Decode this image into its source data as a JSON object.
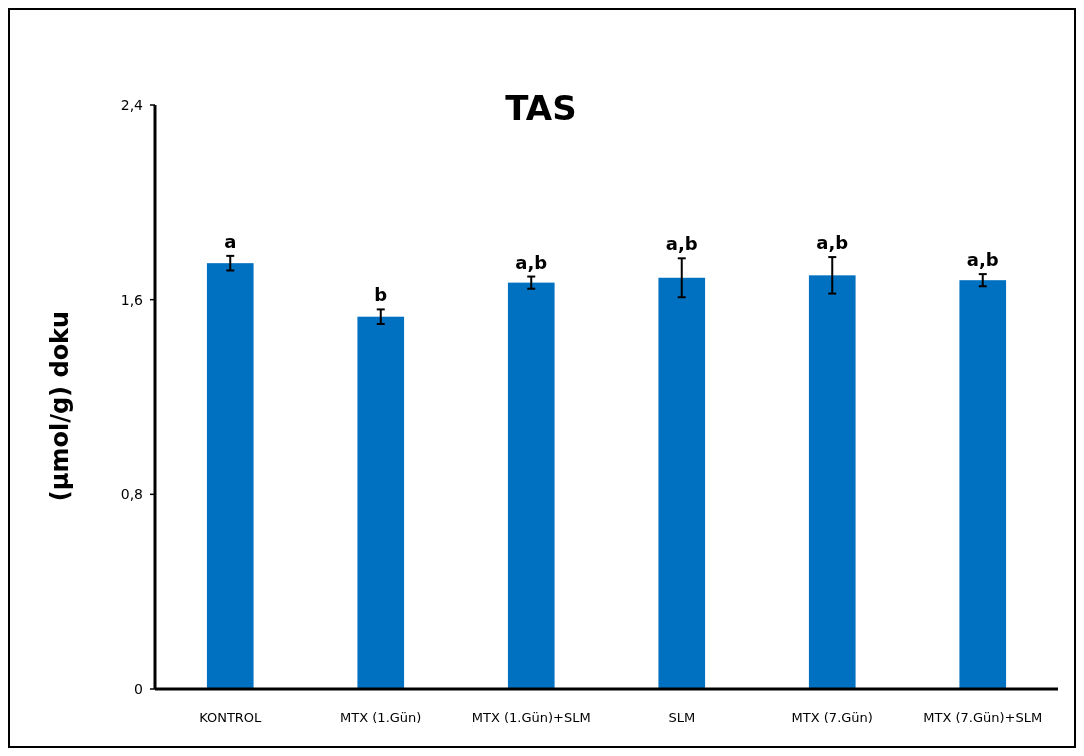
{
  "chart_data": {
    "type": "bar",
    "title": "TAS",
    "ylabel": "(µmol/g) doku",
    "categories": [
      "KONTROL",
      "MTX (1.Gün)",
      "MTX (1.Gün)+SLM",
      "SLM",
      "MTX (7.Gün)",
      "MTX (7.Gün)+SLM"
    ],
    "values": [
      1.75,
      1.53,
      1.67,
      1.69,
      1.7,
      1.68
    ],
    "errors": [
      0.03,
      0.03,
      0.025,
      0.08,
      0.075,
      0.025
    ],
    "color": "#0070c0",
    "ylim": [
      0,
      2.4
    ],
    "yticks": [
      0,
      {
        "value": 0.8,
        "label": "0,8"
      },
      {
        "value": 1.6,
        "label": "1,6"
      },
      {
        "value": 2.4,
        "label": "2,4"
      }
    ],
    "annotations": [
      {
        "text": "a",
        "x": "KONTROL",
        "y": 1.78
      },
      {
        "text": "b",
        "x": "MTX (1.Gün)",
        "y": 1.56
      },
      {
        "text": "a,b",
        "x": "MTX (1.Gün)+SLM",
        "y": 1.695
      },
      {
        "text": "a,b",
        "x": "SLM",
        "y": 1.77
      },
      {
        "text": "a,b",
        "x": "MTX (7.Gün)",
        "y": 1.775
      },
      {
        "text": "a,b",
        "x": "MTX (7.Gün)+SLM",
        "y": 1.705
      }
    ],
    "grid": false
  }
}
